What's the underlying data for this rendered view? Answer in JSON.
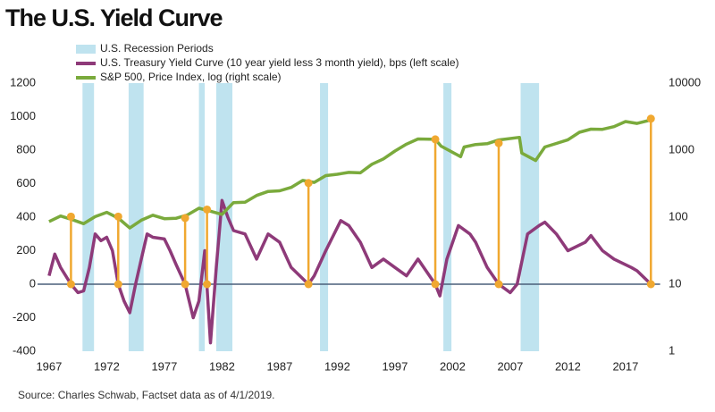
{
  "chart_data": {
    "type": "line",
    "title": "The U.S. Yield Curve",
    "source": "Source: Charles Schwab, Factset data as of 4/1/2019.",
    "xlim": [
      1966,
      2020
    ],
    "xticks": [
      1967,
      1972,
      1977,
      1982,
      1987,
      1992,
      1997,
      2002,
      2007,
      2012,
      2017
    ],
    "ylim": [
      -400,
      1200
    ],
    "yticks": [
      -400,
      -200,
      0,
      200,
      400,
      600,
      800,
      1000,
      1200
    ],
    "y2lim": [
      1,
      10000
    ],
    "y2scale": "log",
    "y2ticks": [
      1,
      10,
      100,
      1000,
      10000
    ],
    "recessions": {
      "name": "U.S. Recession Periods",
      "color": "#bfe3ef",
      "periods": [
        [
          1969.9,
          1970.9
        ],
        [
          1973.9,
          1975.2
        ],
        [
          1980.0,
          1980.5
        ],
        [
          1981.5,
          1982.9
        ],
        [
          1990.5,
          1991.2
        ],
        [
          2001.2,
          2001.9
        ],
        [
          2007.9,
          2009.5
        ]
      ]
    },
    "series": [
      {
        "name": "U.S. Treasury Yield Curve (10 year yield less 3 month yield), bps (left scale)",
        "color": "#8e3a79",
        "axis": "y",
        "x": [
          1967,
          1967.5,
          1968,
          1968.9,
          1969.5,
          1970,
          1970.5,
          1971,
          1971.5,
          1972,
          1972.5,
          1973,
          1973.5,
          1974,
          1974.5,
          1975,
          1975.5,
          1976,
          1977,
          1977.5,
          1978,
          1978.8,
          1979.5,
          1980,
          1980.5,
          1981,
          1981.5,
          1982,
          1982.5,
          1983,
          1984,
          1985,
          1986,
          1987,
          1988,
          1989.5,
          1990,
          1991,
          1992.3,
          1993,
          1994,
          1995,
          1996,
          1997,
          1998,
          1999,
          2000.5,
          2000.9,
          2001.5,
          2002.5,
          2003.5,
          2004,
          2005,
          2006,
          2007,
          2007.6,
          2008.5,
          2009.5,
          2010,
          2011,
          2012,
          2013.5,
          2014,
          2015,
          2016,
          2017.5,
          2018,
          2019.2
        ],
        "values": [
          50,
          180,
          100,
          0,
          -50,
          -40,
          100,
          300,
          260,
          280,
          200,
          0,
          -100,
          -170,
          0,
          150,
          300,
          280,
          270,
          200,
          120,
          0,
          -200,
          -100,
          200,
          -350,
          100,
          500,
          400,
          320,
          300,
          150,
          300,
          250,
          100,
          0,
          50,
          200,
          380,
          350,
          250,
          100,
          150,
          100,
          50,
          150,
          0,
          -70,
          150,
          350,
          300,
          250,
          100,
          0,
          -50,
          0,
          300,
          350,
          370,
          300,
          200,
          250,
          290,
          200,
          150,
          100,
          80,
          0
        ]
      },
      {
        "name": "S&P 500, Price Index, log (right scale)",
        "color": "#7aaa3c",
        "axis": "y2",
        "x": [
          1967,
          1968,
          1969,
          1970,
          1971,
          1972,
          1973,
          1974,
          1975,
          1976,
          1977,
          1978,
          1979,
          1980,
          1981,
          1982,
          1983,
          1984,
          1985,
          1986,
          1987,
          1988,
          1989,
          1990,
          1991,
          1992,
          1993,
          1994,
          1995,
          1996,
          1997,
          1998,
          1999,
          2000.5,
          2001,
          2002.7,
          2003,
          2004,
          2005,
          2006,
          2007.8,
          2008,
          2009.2,
          2010,
          2011,
          2012,
          2013,
          2014,
          2015,
          2016,
          2017,
          2018,
          2019.25
        ],
        "values": [
          86,
          104,
          92,
          80,
          102,
          118,
          97,
          69,
          90,
          107,
          95,
          96,
          108,
          136,
          123,
          110,
          165,
          167,
          211,
          242,
          247,
          278,
          353,
          330,
          417,
          436,
          466,
          459,
          616,
          741,
          970,
          1229,
          1469,
          1450,
          1148,
          800,
          1112,
          1212,
          1248,
          1418,
          1550,
          903,
          700,
          1115,
          1258,
          1426,
          1848,
          2059,
          2044,
          2239,
          2674,
          2507,
          2834
        ]
      }
    ],
    "inversion_markers": {
      "color": "#f0a830",
      "x": [
        1968.9,
        1973.0,
        1978.8,
        1980.7,
        1989.5,
        2000.5,
        2006.0,
        2019.2
      ],
      "values": [
        102,
        102,
        97,
        130,
        323,
        1450,
        1270,
        2950
      ]
    }
  }
}
